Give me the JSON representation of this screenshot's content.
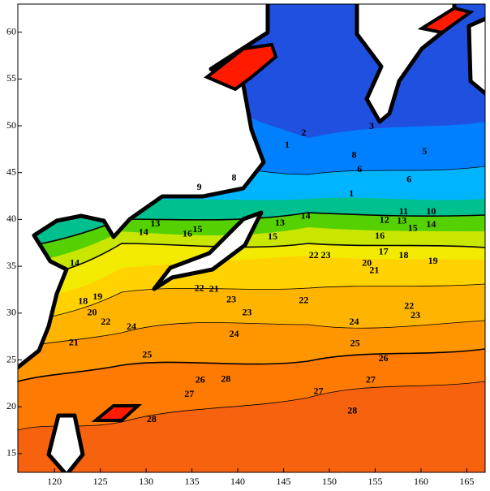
{
  "map": {
    "xlim": [
      116,
      167
    ],
    "ylim": [
      13,
      63
    ],
    "xticks": [
      120,
      125,
      130,
      135,
      140,
      145,
      150,
      155,
      160,
      165
    ],
    "yticks": [
      15,
      20,
      25,
      30,
      35,
      40,
      45,
      50,
      55,
      60
    ],
    "contour_labels": [
      {
        "value": 10,
        "lon": 161.1,
        "lat": 40.8
      },
      {
        "value": 11,
        "lon": 158.1,
        "lat": 40.8
      },
      {
        "value": 12,
        "lon": 156.0,
        "lat": 39.9
      },
      {
        "value": 13,
        "lon": 157.9,
        "lat": 39.8
      },
      {
        "value": 14,
        "lon": 161.1,
        "lat": 39.4
      },
      {
        "value": 15,
        "lon": 159.1,
        "lat": 39.0
      },
      {
        "value": 16,
        "lon": 155.5,
        "lat": 38.2
      },
      {
        "value": 17,
        "lon": 155.9,
        "lat": 36.5
      },
      {
        "value": 18,
        "lon": 158.1,
        "lat": 36.1
      },
      {
        "value": 19,
        "lon": 161.3,
        "lat": 35.5
      },
      {
        "value": 20,
        "lon": 154.1,
        "lat": 35.3
      },
      {
        "value": 21,
        "lon": 154.9,
        "lat": 34.5
      },
      {
        "value": 22,
        "lon": 147.2,
        "lat": 31.3
      },
      {
        "value": 22,
        "lon": 158.7,
        "lat": 30.7
      },
      {
        "value": 23,
        "lon": 159.4,
        "lat": 29.7
      },
      {
        "value": 23,
        "lon": 141.0,
        "lat": 30.0
      },
      {
        "value": 24,
        "lon": 139.6,
        "lat": 27.7
      },
      {
        "value": 24,
        "lon": 152.7,
        "lat": 29.0
      },
      {
        "value": 25,
        "lon": 152.8,
        "lat": 26.7
      },
      {
        "value": 26,
        "lon": 155.9,
        "lat": 25.1
      },
      {
        "value": 27,
        "lon": 154.5,
        "lat": 22.8
      },
      {
        "value": 27,
        "lon": 148.8,
        "lat": 21.6
      },
      {
        "value": 28,
        "lon": 152.5,
        "lat": 19.5
      },
      {
        "value": 28,
        "lon": 138.7,
        "lat": 22.9
      },
      {
        "value": 26,
        "lon": 135.9,
        "lat": 22.8
      },
      {
        "value": 27,
        "lon": 134.7,
        "lat": 21.3
      },
      {
        "value": 28,
        "lon": 130.6,
        "lat": 18.6
      },
      {
        "value": 25,
        "lon": 130.1,
        "lat": 25.5
      },
      {
        "value": 24,
        "lon": 128.4,
        "lat": 28.5
      },
      {
        "value": 22,
        "lon": 125.6,
        "lat": 29.0
      },
      {
        "value": 21,
        "lon": 122.1,
        "lat": 26.8
      },
      {
        "value": 20,
        "lon": 124.1,
        "lat": 30.0
      },
      {
        "value": 19,
        "lon": 124.7,
        "lat": 31.7
      },
      {
        "value": 18,
        "lon": 123.1,
        "lat": 31.2
      },
      {
        "value": 14,
        "lon": 122.2,
        "lat": 35.3
      },
      {
        "value": 13,
        "lon": 131.0,
        "lat": 39.5
      },
      {
        "value": 14,
        "lon": 129.7,
        "lat": 38.6
      },
      {
        "value": 15,
        "lon": 135.6,
        "lat": 38.9
      },
      {
        "value": 16,
        "lon": 134.5,
        "lat": 38.4
      },
      {
        "value": 13,
        "lon": 144.6,
        "lat": 39.6
      },
      {
        "value": 14,
        "lon": 147.4,
        "lat": 40.3
      },
      {
        "value": 15,
        "lon": 143.8,
        "lat": 38.1
      },
      {
        "value": 22,
        "lon": 135.8,
        "lat": 32.6
      },
      {
        "value": 21,
        "lon": 137.4,
        "lat": 32.5
      },
      {
        "value": 23,
        "lon": 139.3,
        "lat": 31.4
      },
      {
        "value": 22,
        "lon": 148.3,
        "lat": 36.1
      },
      {
        "value": 23,
        "lon": 149.6,
        "lat": 36.1
      },
      {
        "value": 8,
        "lon": 139.6,
        "lat": 44.4
      },
      {
        "value": 9,
        "lon": 135.8,
        "lat": 43.4
      },
      {
        "value": 1,
        "lon": 145.4,
        "lat": 47.9
      },
      {
        "value": 1,
        "lon": 152.4,
        "lat": 42.7
      },
      {
        "value": 6,
        "lon": 153.3,
        "lat": 45.3
      },
      {
        "value": 3,
        "lon": 154.6,
        "lat": 49.9
      },
      {
        "value": 5,
        "lon": 160.4,
        "lat": 47.2
      },
      {
        "value": 6,
        "lon": 158.7,
        "lat": 44.2
      },
      {
        "value": 2,
        "lon": 147.2,
        "lat": 49.2
      },
      {
        "value": 8,
        "lon": 152.7,
        "lat": 46.8
      }
    ]
  }
}
